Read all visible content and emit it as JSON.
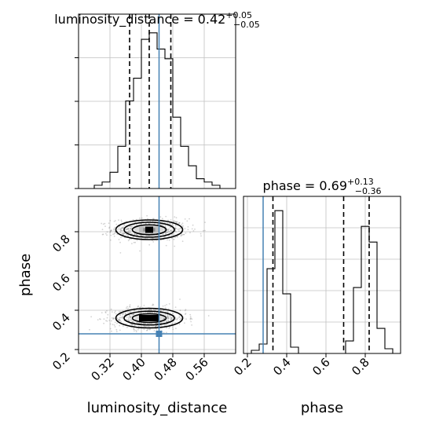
{
  "chart_data": {
    "type": "corner",
    "truth": {
      "luminosity_distance": 0.445,
      "phase": 0.28
    },
    "colors": {
      "truth": "#4682b4",
      "hist": "#000000",
      "quantile": "#000000",
      "grid": "#c0c0c0",
      "points": "#808080"
    },
    "grid": true,
    "panels": [
      {
        "id": "hist-luminosity-distance",
        "type": "histogram",
        "title": {
          "main": "luminosity_distance = 0.42",
          "sup": "+0.05",
          "sub": "−0.05"
        },
        "xlim": [
          0.24,
          0.64
        ],
        "bins_edges": [
          0.24,
          0.26,
          0.28,
          0.3,
          0.32,
          0.34,
          0.36,
          0.38,
          0.4,
          0.42,
          0.44,
          0.46,
          0.48,
          0.5,
          0.52,
          0.54,
          0.56,
          0.58,
          0.6,
          0.62,
          0.64
        ],
        "counts": [
          0,
          0,
          1,
          2,
          5,
          13,
          27,
          34,
          46,
          48,
          43,
          40,
          22,
          13,
          7,
          3,
          2,
          1,
          0,
          0
        ],
        "quantiles": [
          0.37,
          0.42,
          0.475
        ]
      },
      {
        "id": "hist-phase",
        "type": "histogram",
        "title": {
          "main": "phase = 0.69",
          "sup": "+0.13",
          "sub": "−0.36"
        },
        "xlim": [
          0.18,
          0.98
        ],
        "x_ticks": [
          0.2,
          0.4,
          0.6,
          0.8
        ],
        "x_tick_labels": [
          "0.2",
          "0.4",
          "0.6",
          "0.8"
        ],
        "xlabel": "phase",
        "bins_edges": [
          0.18,
          0.22,
          0.26,
          0.3,
          0.34,
          0.38,
          0.42,
          0.46,
          0.5,
          0.54,
          0.58,
          0.62,
          0.66,
          0.7,
          0.74,
          0.78,
          0.82,
          0.86,
          0.9,
          0.94,
          0.98
        ],
        "counts": [
          0,
          2,
          6,
          54,
          91,
          38,
          4,
          0,
          0,
          0,
          0,
          0,
          0,
          8,
          42,
          81,
          71,
          16,
          3,
          0
        ],
        "quantiles": [
          0.33,
          0.69,
          0.82
        ]
      },
      {
        "id": "joint-luminosity-phase",
        "type": "2d-density",
        "xlim": [
          0.24,
          0.64
        ],
        "ylim": [
          0.18,
          0.98
        ],
        "x_ticks": [
          0.32,
          0.4,
          0.48,
          0.56
        ],
        "x_tick_labels": [
          "0.32",
          "0.40",
          "0.48",
          "0.56"
        ],
        "y_ticks": [
          0.2,
          0.4,
          0.6,
          0.8
        ],
        "y_tick_labels": [
          "0.2",
          "0.4",
          "0.6",
          "0.8"
        ],
        "xlabel": "luminosity_distance",
        "ylabel": "phase",
        "modes": [
          {
            "center": [
              0.42,
              0.81
            ],
            "spread": [
              0.045,
              0.028
            ],
            "contours": [
              [
                0.043,
                0.025
              ],
              [
                0.064,
                0.038
              ],
              [
                0.085,
                0.05
              ]
            ]
          },
          {
            "center": [
              0.42,
              0.36
            ],
            "spread": [
              0.045,
              0.028
            ],
            "contours": [
              [
                0.043,
                0.022
              ],
              [
                0.064,
                0.035
              ],
              [
                0.085,
                0.05
              ]
            ]
          }
        ]
      }
    ]
  }
}
